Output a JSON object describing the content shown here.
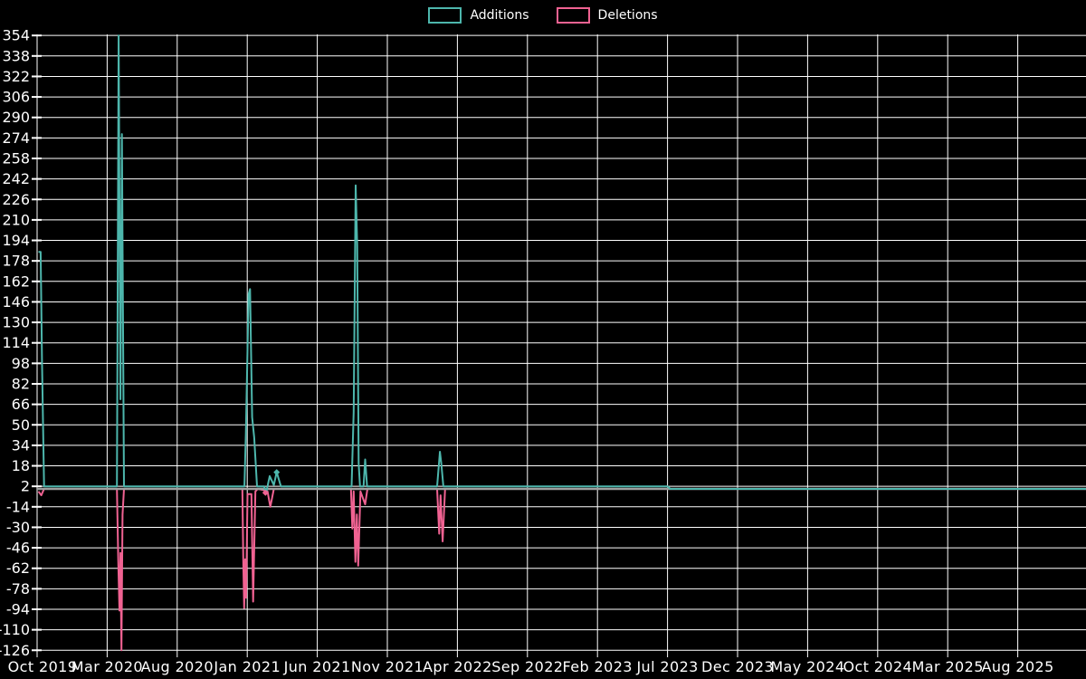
{
  "legend": {
    "position": "top-center",
    "items": [
      {
        "label": "Additions",
        "color": "#4DB6AC"
      },
      {
        "label": "Deletions",
        "color": "#F06292"
      }
    ]
  },
  "chart_data": {
    "type": "line",
    "title": "",
    "xlabel": "",
    "ylabel": "",
    "grid": true,
    "background": "#000000",
    "colors": {
      "grid": "#ffffff",
      "zero_line": "#9e9e9e",
      "text": "#ffffff",
      "additions": "#4DB6AC",
      "deletions": "#F06292"
    },
    "x_axis": {
      "unit": "months since Oct 2019",
      "ticks": [
        {
          "label": "Oct 2019",
          "m": 0
        },
        {
          "label": "Mar 2020",
          "m": 5
        },
        {
          "label": "Aug 2020",
          "m": 10
        },
        {
          "label": "Jan 2021",
          "m": 15
        },
        {
          "label": "Jun 2021",
          "m": 20
        },
        {
          "label": "Nov 2021",
          "m": 25
        },
        {
          "label": "Apr 2022",
          "m": 30
        },
        {
          "label": "Sep 2022",
          "m": 35
        },
        {
          "label": "Feb 2023",
          "m": 40
        },
        {
          "label": "Jul 2023",
          "m": 45
        },
        {
          "label": "Dec 2023",
          "m": 50
        },
        {
          "label": "May 2024",
          "m": 55
        },
        {
          "label": "Oct 2024",
          "m": 60
        },
        {
          "label": "Mar 2025",
          "m": 65
        },
        {
          "label": "Aug 2025",
          "m": 70
        }
      ],
      "range_months": [
        0,
        74.9
      ]
    },
    "y_axis": {
      "min": -126,
      "max": 354,
      "step": 16,
      "ticks": [
        354,
        338,
        322,
        306,
        290,
        274,
        258,
        242,
        226,
        210,
        194,
        178,
        162,
        146,
        130,
        114,
        98,
        82,
        66,
        50,
        34,
        18,
        2,
        -14,
        -30,
        -46,
        -62,
        -78,
        -94,
        -110,
        -126
      ]
    },
    "series": [
      {
        "name": "Additions",
        "color": "#4DB6AC",
        "points": [
          [
            0.1,
            185
          ],
          [
            0.25,
            185
          ],
          [
            0.35,
            100
          ],
          [
            0.5,
            2
          ],
          [
            5.7,
            2
          ],
          [
            5.82,
            354
          ],
          [
            5.95,
            70
          ],
          [
            6.05,
            277
          ],
          [
            6.2,
            2
          ],
          [
            14.8,
            2
          ],
          [
            14.9,
            44
          ],
          [
            15.1,
            152
          ],
          [
            15.2,
            156
          ],
          [
            15.35,
            56
          ],
          [
            15.5,
            40
          ],
          [
            15.7,
            2
          ],
          [
            16.2,
            2
          ],
          [
            16.35,
            -3
          ],
          [
            16.6,
            10
          ],
          [
            16.9,
            3
          ],
          [
            17.1,
            13
          ],
          [
            17.4,
            2
          ],
          [
            22.45,
            2
          ],
          [
            22.6,
            60
          ],
          [
            22.74,
            237
          ],
          [
            22.85,
            190
          ],
          [
            22.95,
            20
          ],
          [
            23.05,
            2
          ],
          [
            23.3,
            2
          ],
          [
            23.42,
            23
          ],
          [
            23.55,
            2
          ],
          [
            28.55,
            2
          ],
          [
            28.75,
            29
          ],
          [
            28.85,
            20
          ],
          [
            29.0,
            2
          ],
          [
            45.0,
            2
          ],
          [
            45.2,
            0
          ],
          [
            74.9,
            0
          ]
        ]
      },
      {
        "name": "Deletions",
        "color": "#F06292",
        "points": [
          [
            0.1,
            -2
          ],
          [
            0.3,
            -5
          ],
          [
            0.5,
            0
          ],
          [
            5.7,
            0
          ],
          [
            5.8,
            -60
          ],
          [
            5.88,
            -95
          ],
          [
            5.95,
            -50
          ],
          [
            6.02,
            -126
          ],
          [
            6.1,
            -20
          ],
          [
            6.2,
            0
          ],
          [
            14.65,
            0
          ],
          [
            14.72,
            -60
          ],
          [
            14.78,
            -93
          ],
          [
            14.85,
            -55
          ],
          [
            14.92,
            -85
          ],
          [
            15.02,
            -4
          ],
          [
            15.3,
            -4
          ],
          [
            15.42,
            -88
          ],
          [
            15.58,
            -2
          ],
          [
            15.75,
            0
          ],
          [
            16.2,
            -1
          ],
          [
            16.3,
            -3
          ],
          [
            16.45,
            -2
          ],
          [
            16.65,
            -14
          ],
          [
            16.9,
            0
          ],
          [
            22.4,
            0
          ],
          [
            22.5,
            -31
          ],
          [
            22.6,
            -2
          ],
          [
            22.72,
            -57
          ],
          [
            22.82,
            -20
          ],
          [
            22.92,
            -60
          ],
          [
            23.08,
            -2
          ],
          [
            23.42,
            -12
          ],
          [
            23.58,
            0
          ],
          [
            28.55,
            0
          ],
          [
            28.7,
            -35
          ],
          [
            28.8,
            -5
          ],
          [
            28.95,
            -41
          ],
          [
            29.12,
            0
          ],
          [
            74.9,
            0
          ]
        ]
      }
    ],
    "markers": [
      {
        "series": "Deletions",
        "point": [
          16.3,
          -3
        ]
      },
      {
        "series": "Additions",
        "point": [
          17.1,
          13
        ]
      }
    ]
  }
}
